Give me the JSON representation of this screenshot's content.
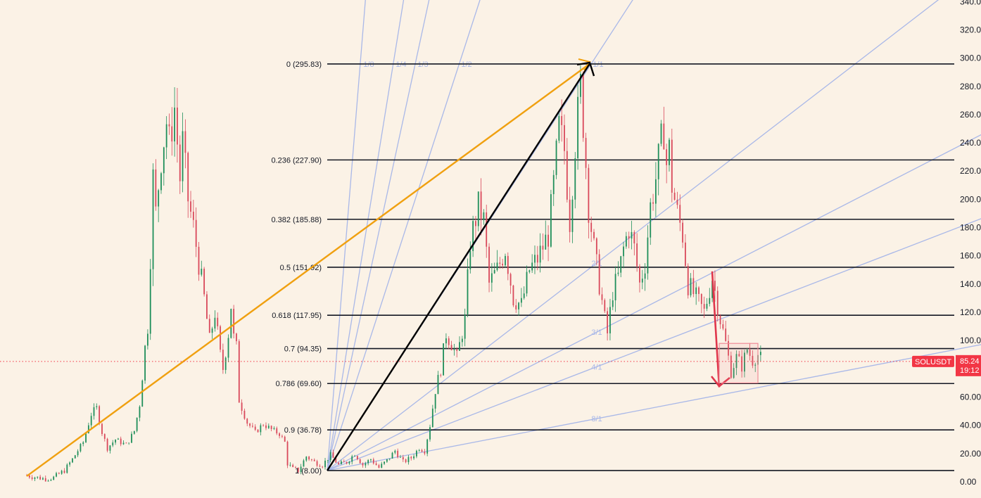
{
  "chart_data": {
    "type": "candlestick",
    "symbol": "SOLUSDT",
    "current_price": "85.24",
    "countdown": "19:12",
    "colors": {
      "background": "#fbf2e6",
      "fib_line": "#131722",
      "fan_line": "#a9b8e8",
      "trend_orange": "#f0a010",
      "trend_black": "#000000",
      "arrow_red": "#e0364c",
      "candle_up": "#1f8f5a",
      "candle_down": "#d9485a",
      "box_red": "#f08c98",
      "price_tag": "#f23645"
    },
    "y_axis": {
      "ticks": [
        "340.00",
        "320.00",
        "300.00",
        "280.00",
        "260.00",
        "240.00",
        "220.00",
        "200.00",
        "180.00",
        "160.00",
        "140.00",
        "120.00",
        "100.00",
        "80.00",
        "60.00",
        "40.00",
        "20.00",
        "0.00"
      ],
      "range": [
        0,
        340
      ]
    },
    "fib_levels": [
      {
        "label": "0 (295.83)",
        "price": 295.83
      },
      {
        "label": "0.236 (227.90)",
        "price": 227.9
      },
      {
        "label": "0.382 (185.88)",
        "price": 185.88
      },
      {
        "label": "0.5 (151.92)",
        "price": 151.92
      },
      {
        "label": "0.618 (117.95)",
        "price": 117.95
      },
      {
        "label": "0.7 (94.35)",
        "price": 94.35
      },
      {
        "label": "0.786 (69.60)",
        "price": 69.6
      },
      {
        "label": "0.9 (36.78)",
        "price": 36.78
      },
      {
        "label": "1 (8.00)",
        "price": 8.0
      }
    ],
    "fan_ratios": [
      "1/8",
      "1/4",
      "1/3",
      "1/2",
      "1/1",
      "2/1",
      "3/1",
      "4/1",
      "8/1"
    ],
    "price_path": [
      [
        0,
        4.5
      ],
      [
        4,
        3
      ],
      [
        7,
        2
      ],
      [
        10,
        3
      ],
      [
        14,
        8
      ],
      [
        17,
        16
      ],
      [
        21,
        28
      ],
      [
        24,
        48
      ],
      [
        26,
        52
      ],
      [
        28,
        35
      ],
      [
        30,
        24
      ],
      [
        33,
        30
      ],
      [
        37,
        26
      ],
      [
        40,
        36
      ],
      [
        42,
        55
      ],
      [
        44,
        95
      ],
      [
        45,
        110
      ],
      [
        46,
        160
      ],
      [
        47,
        215
      ],
      [
        48,
        190
      ],
      [
        50,
        230
      ],
      [
        52,
        255
      ],
      [
        53,
        240
      ],
      [
        55,
        265
      ],
      [
        57,
        215
      ],
      [
        58,
        240
      ],
      [
        60,
        200
      ],
      [
        62,
        180
      ],
      [
        64,
        155
      ],
      [
        66,
        130
      ],
      [
        68,
        100
      ],
      [
        70,
        120
      ],
      [
        72,
        90
      ],
      [
        73,
        80
      ],
      [
        75,
        105
      ],
      [
        76,
        125
      ],
      [
        77,
        102
      ],
      [
        78,
        95
      ],
      [
        79,
        58
      ],
      [
        82,
        42
      ],
      [
        85,
        35
      ],
      [
        88,
        41
      ],
      [
        91,
        37
      ],
      [
        94,
        34
      ],
      [
        96,
        28
      ],
      [
        97,
        13
      ],
      [
        99,
        9
      ],
      [
        101,
        8
      ],
      [
        104,
        18
      ],
      [
        107,
        14
      ],
      [
        110,
        12
      ],
      [
        113,
        19
      ],
      [
        116,
        12
      ],
      [
        119,
        14
      ],
      [
        122,
        20
      ],
      [
        125,
        12
      ],
      [
        128,
        16
      ],
      [
        131,
        10
      ],
      [
        134,
        15
      ],
      [
        137,
        22
      ],
      [
        140,
        14
      ],
      [
        143,
        17
      ],
      [
        146,
        24
      ],
      [
        148,
        22
      ],
      [
        150,
        40
      ],
      [
        152,
        65
      ],
      [
        154,
        80
      ],
      [
        156,
        105
      ],
      [
        158,
        98
      ],
      [
        160,
        88
      ],
      [
        163,
        115
      ],
      [
        165,
        170
      ],
      [
        168,
        195
      ],
      [
        170,
        185
      ],
      [
        172,
        140
      ],
      [
        175,
        150
      ],
      [
        178,
        165
      ],
      [
        181,
        130
      ],
      [
        184,
        125
      ],
      [
        187,
        150
      ],
      [
        190,
        158
      ],
      [
        194,
        175
      ],
      [
        196,
        210
      ],
      [
        198,
        250
      ],
      [
        200,
        235
      ],
      [
        202,
        185
      ],
      [
        204,
        240
      ],
      [
        206,
        280
      ],
      [
        207,
        255
      ],
      [
        209,
        195
      ],
      [
        211,
        165
      ],
      [
        213,
        140
      ],
      [
        215,
        115
      ],
      [
        216,
        105
      ],
      [
        218,
        135
      ],
      [
        220,
        145
      ],
      [
        222,
        165
      ],
      [
        224,
        180
      ],
      [
        226,
        165
      ],
      [
        228,
        140
      ],
      [
        230,
        155
      ],
      [
        232,
        195
      ],
      [
        234,
        215
      ],
      [
        236,
        240
      ],
      [
        237,
        250
      ],
      [
        238,
        225
      ],
      [
        239,
        235
      ],
      [
        240,
        210
      ],
      [
        242,
        190
      ],
      [
        244,
        175
      ],
      [
        246,
        140
      ],
      [
        249,
        130
      ],
      [
        252,
        120
      ],
      [
        255,
        145
      ],
      [
        256,
        135
      ],
      [
        258,
        115
      ],
      [
        260,
        98
      ],
      [
        262,
        78
      ],
      [
        264,
        88
      ],
      [
        266,
        82
      ],
      [
        268,
        94
      ],
      [
        270,
        86
      ],
      [
        272,
        90
      ],
      [
        274,
        85
      ]
    ]
  }
}
